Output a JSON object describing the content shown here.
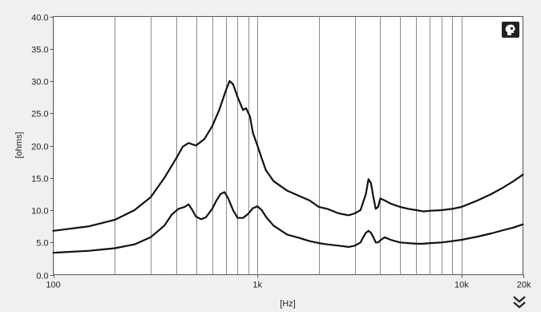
{
  "chart_data": {
    "type": "line",
    "title": "",
    "xlabel": "[Hz]",
    "ylabel": "[ohms]",
    "xscale": "log",
    "xlim": [
      100,
      20000
    ],
    "ylim": [
      0,
      40
    ],
    "grid": "vertical, log decades",
    "x_tick_labels": [
      "100",
      "1k",
      "10k",
      "20k"
    ],
    "x_tick_values": [
      100,
      1000,
      10000,
      20000
    ],
    "y_tick_labels": [
      "0.0",
      "5.0",
      "10.0",
      "15.0",
      "20.0",
      "25.0",
      "30.0",
      "35.0",
      "40.0"
    ],
    "y_tick_values": [
      0,
      5,
      10,
      15,
      20,
      25,
      30,
      35,
      40
    ],
    "series": [
      {
        "color": "#111111",
        "x": [
          100,
          150,
          200,
          250,
          300,
          350,
          400,
          430,
          460,
          500,
          550,
          600,
          650,
          700,
          730,
          760,
          800,
          850,
          880,
          920,
          950,
          1000,
          1050,
          1100,
          1200,
          1400,
          1600,
          1800,
          2000,
          2200,
          2500,
          2800,
          3000,
          3200,
          3400,
          3500,
          3600,
          3700,
          3800,
          3900,
          4000,
          4200,
          4500,
          5000,
          5500,
          6000,
          6500,
          7000,
          8000,
          9000,
          10000,
          12000,
          14000,
          16000,
          18000,
          20000
        ],
        "y": [
          6.8,
          7.5,
          8.5,
          10.0,
          12.0,
          15.0,
          18.0,
          19.8,
          20.4,
          20.0,
          21.0,
          23.0,
          25.5,
          28.5,
          30.0,
          29.5,
          27.5,
          25.5,
          25.8,
          24.5,
          22.0,
          20.0,
          18.0,
          16.2,
          14.5,
          13.0,
          12.2,
          11.5,
          10.5,
          10.2,
          9.5,
          9.2,
          9.5,
          10.0,
          12.5,
          14.8,
          14.2,
          12.0,
          10.2,
          10.5,
          11.8,
          11.5,
          11.0,
          10.5,
          10.2,
          10.0,
          9.8,
          9.9,
          10.0,
          10.2,
          10.5,
          11.5,
          12.5,
          13.5,
          14.5,
          15.5
        ]
      },
      {
        "color": "#111111",
        "x": [
          100,
          150,
          200,
          250,
          300,
          350,
          380,
          410,
          440,
          460,
          480,
          500,
          530,
          560,
          600,
          630,
          660,
          690,
          720,
          760,
          800,
          850,
          900,
          950,
          1000,
          1050,
          1100,
          1200,
          1400,
          1600,
          1800,
          2000,
          2200,
          2500,
          2800,
          3000,
          3200,
          3300,
          3400,
          3500,
          3600,
          3700,
          3800,
          3900,
          4000,
          4200,
          4500,
          5000,
          5500,
          6000,
          6500,
          7000,
          8000,
          9000,
          10000,
          12000,
          14000,
          16000,
          18000,
          20000
        ],
        "y": [
          3.4,
          3.7,
          4.1,
          4.7,
          5.8,
          7.6,
          9.3,
          10.2,
          10.5,
          10.9,
          10.0,
          9.0,
          8.6,
          8.9,
          10.2,
          11.5,
          12.5,
          12.8,
          11.8,
          10.0,
          8.8,
          8.8,
          9.4,
          10.3,
          10.6,
          10.0,
          9.0,
          7.6,
          6.2,
          5.7,
          5.2,
          4.9,
          4.7,
          4.5,
          4.3,
          4.5,
          5.0,
          5.8,
          6.5,
          6.8,
          6.5,
          5.8,
          5.0,
          5.0,
          5.3,
          5.8,
          5.4,
          5.0,
          4.9,
          4.8,
          4.8,
          4.9,
          5.0,
          5.2,
          5.4,
          5.9,
          6.4,
          6.9,
          7.3,
          7.8
        ]
      }
    ]
  },
  "icons": {
    "export": "head-silhouette-icon",
    "expand": "double-chevron-down-icon"
  }
}
